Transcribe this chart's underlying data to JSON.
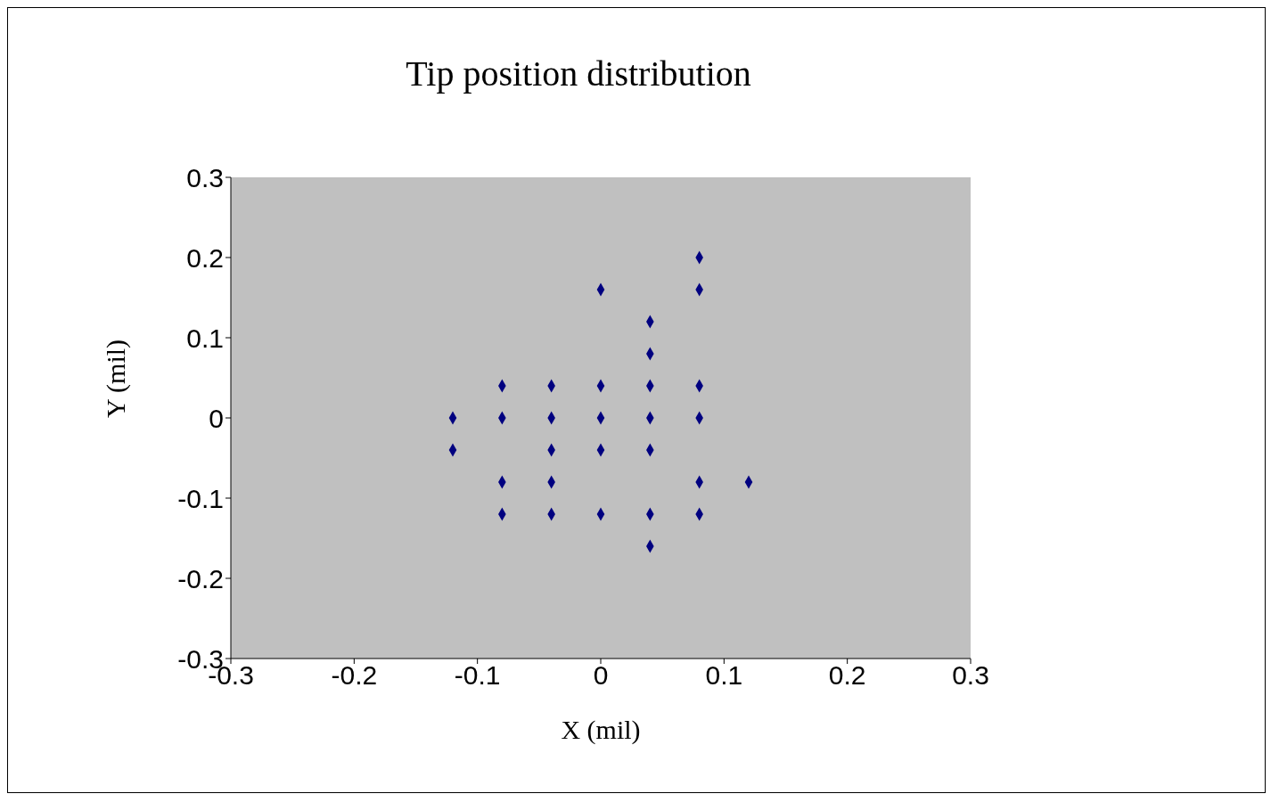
{
  "chart_data": {
    "type": "scatter",
    "title": "Tip position distribution",
    "xlabel": "X (mil)",
    "ylabel": "Y (mil)",
    "xlim": [
      -0.3,
      0.3
    ],
    "xticks": [
      -0.3,
      -0.2,
      -0.1,
      0,
      0.1,
      0.2,
      0.3
    ],
    "ylim": [
      -0.3,
      0.3
    ],
    "yticks": [
      -0.3,
      -0.2,
      -0.1,
      0,
      0.1,
      0.2,
      0.3
    ],
    "grid": false,
    "legend": false,
    "marker": "diamond",
    "series": [
      {
        "color": "#000080",
        "x": [
          0.08,
          0.08,
          0,
          0.04,
          0.04,
          -0.08,
          -0.04,
          0,
          0.04,
          0.08,
          -0.12,
          -0.08,
          -0.04,
          0,
          0.04,
          0.08,
          -0.12,
          -0.04,
          0,
          0.04,
          -0.08,
          -0.04,
          0.08,
          0.12,
          -0.08,
          -0.04,
          0,
          0.04,
          0.08,
          0.04
        ],
        "values": [
          0.2,
          0.16,
          0.16,
          0.12,
          0.08,
          0.04,
          0.04,
          0.04,
          0.04,
          0.04,
          0,
          0,
          0,
          0,
          0,
          0,
          -0.04,
          -0.04,
          -0.04,
          -0.04,
          -0.08,
          -0.08,
          -0.08,
          -0.08,
          -0.12,
          -0.12,
          -0.12,
          -0.12,
          -0.12,
          -0.16
        ]
      }
    ]
  }
}
